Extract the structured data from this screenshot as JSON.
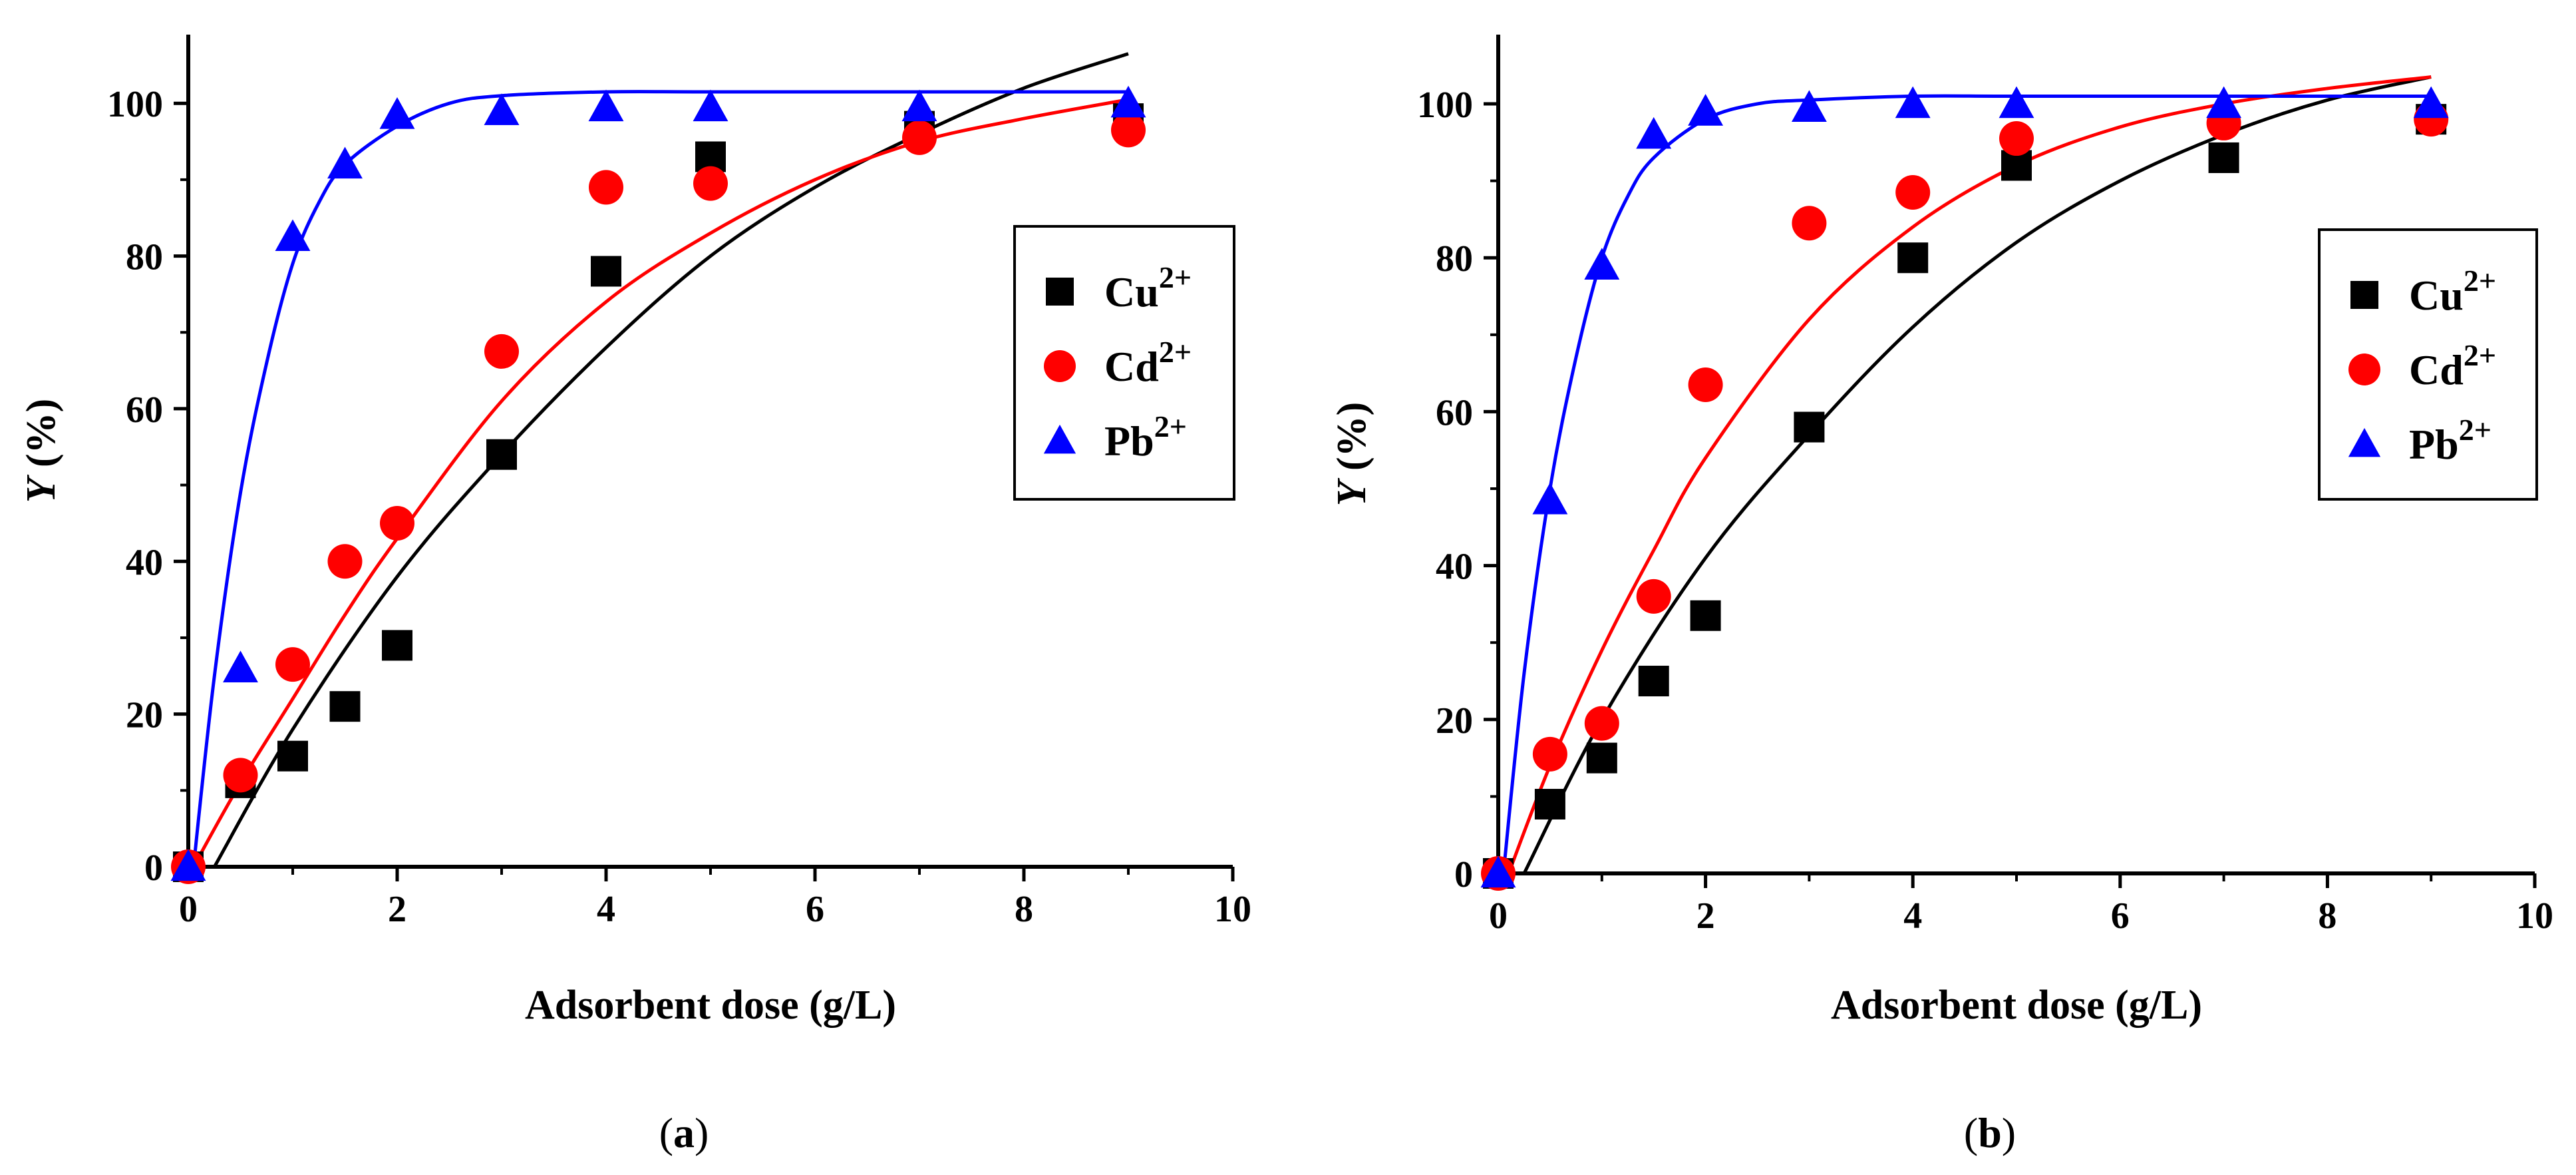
{
  "chart_data": [
    {
      "type": "scatter",
      "panel_label": "a",
      "xlabel": "Adsorbent dose (g/L)",
      "ylabel": "Y (%)",
      "ylabel_italic": "Y",
      "ylabel_rest": " (%)",
      "xlim": [
        0,
        10
      ],
      "ylim": [
        0,
        109
      ],
      "xticks": [
        0,
        2,
        4,
        6,
        8,
        10
      ],
      "yticks": [
        0,
        20,
        40,
        60,
        80,
        100
      ],
      "grid": false,
      "legend_position": "right",
      "series": [
        {
          "name": "Cu2+",
          "label_base": "Cu",
          "label_sup": "2+",
          "marker": "square",
          "color": "#000000",
          "x": [
            0,
            0.5,
            1,
            1.5,
            2,
            3,
            4,
            5,
            7,
            9
          ],
          "y": [
            0,
            11,
            14.5,
            21,
            29,
            54,
            78,
            93,
            97,
            98
          ],
          "fit": {
            "x": [
              0.25,
              1,
              2,
              3,
              4,
              5,
              6,
              7,
              8,
              9
            ],
            "y": [
              0,
              18,
              38,
              54,
              68,
              80,
              89,
              96,
              102,
              106.5
            ]
          }
        },
        {
          "name": "Cd2+",
          "label_base": "Cd",
          "label_sup": "2+",
          "marker": "circle",
          "color": "#ff0000",
          "x": [
            0,
            0.5,
            1,
            1.5,
            2,
            3,
            4,
            5,
            7,
            9
          ],
          "y": [
            0,
            12,
            26.5,
            40,
            45,
            67.5,
            89,
            89.5,
            95.5,
            96.5
          ],
          "fit": {
            "x": [
              0.05,
              0.5,
              1,
              1.5,
              2,
              3,
              4,
              5,
              6,
              7,
              8,
              9
            ],
            "y": [
              0,
              11,
              22,
              33,
              43,
              61,
              74,
              83,
              90,
              95,
              98,
              100.5
            ]
          }
        },
        {
          "name": "Pb2+",
          "label_base": "Pb",
          "label_sup": "2+",
          "marker": "triangle",
          "color": "#0000ff",
          "x": [
            0,
            0.5,
            1,
            1.5,
            2,
            3,
            4,
            5,
            7,
            9
          ],
          "y": [
            0,
            26,
            82.5,
            92,
            98.5,
            99,
            99.5,
            99.5,
            99.5,
            100
          ],
          "fit": {
            "x": [
              0.05,
              0.25,
              0.5,
              0.75,
              1,
              1.25,
              1.5,
              2,
              2.5,
              3,
              4,
              5,
              7,
              9
            ],
            "y": [
              0,
              25,
              49,
              66,
              79,
              87,
              92,
              97,
              100,
              101,
              101.5,
              101.5,
              101.5,
              101.5
            ]
          }
        }
      ]
    },
    {
      "type": "scatter",
      "panel_label": "b",
      "xlabel": "Adsorbent dose (g/L)",
      "ylabel": "Y (%)",
      "ylabel_italic": "Y",
      "ylabel_rest": " (%)",
      "xlim": [
        0,
        10
      ],
      "ylim": [
        0,
        109
      ],
      "xticks": [
        0,
        2,
        4,
        6,
        8,
        10
      ],
      "yticks": [
        0,
        20,
        40,
        60,
        80,
        100
      ],
      "grid": false,
      "legend_position": "right",
      "series": [
        {
          "name": "Cu2+",
          "label_base": "Cu",
          "label_sup": "2+",
          "marker": "square",
          "color": "#000000",
          "x": [
            0,
            0.5,
            1,
            1.5,
            2,
            3,
            4,
            5,
            7,
            9
          ],
          "y": [
            0,
            9,
            15,
            25,
            33.5,
            58,
            80,
            92,
            93,
            98
          ],
          "fit": {
            "x": [
              0.25,
              1,
              2,
              3,
              4,
              5,
              6,
              7,
              8,
              9
            ],
            "y": [
              0,
              20,
              41,
              57,
              71,
              82,
              90,
              96,
              100.5,
              103.5
            ]
          }
        },
        {
          "name": "Cd2+",
          "label_base": "Cd",
          "label_sup": "2+",
          "marker": "circle",
          "color": "#ff0000",
          "x": [
            0,
            0.5,
            1,
            1.5,
            2,
            3,
            4,
            5,
            7,
            9
          ],
          "y": [
            0,
            15.5,
            19.5,
            36,
            63.5,
            84.5,
            88.5,
            95.5,
            97.5,
            98
          ],
          "fit": {
            "x": [
              0.1,
              0.5,
              1,
              1.5,
              2,
              3,
              4,
              5,
              6,
              7,
              8,
              9
            ],
            "y": [
              0,
              14,
              29,
              42,
              54,
              72,
              84,
              92,
              97,
              100,
              102,
              103.5
            ]
          }
        },
        {
          "name": "Pb2+",
          "label_base": "Pb",
          "label_sup": "2+",
          "marker": "triangle",
          "color": "#0000ff",
          "x": [
            0,
            0.5,
            1,
            1.5,
            2,
            3,
            4,
            5,
            7,
            9
          ],
          "y": [
            0,
            48.5,
            79,
            96,
            99,
            99.5,
            100,
            100,
            100,
            100
          ],
          "fit": {
            "x": [
              0.05,
              0.25,
              0.5,
              0.75,
              1,
              1.25,
              1.5,
              2,
              2.5,
              3,
              4,
              5,
              7,
              9
            ],
            "y": [
              0,
              26,
              50,
              67,
              80,
              88,
              93,
              98,
              100,
              100.5,
              101,
              101,
              101,
              101
            ]
          }
        }
      ]
    }
  ]
}
